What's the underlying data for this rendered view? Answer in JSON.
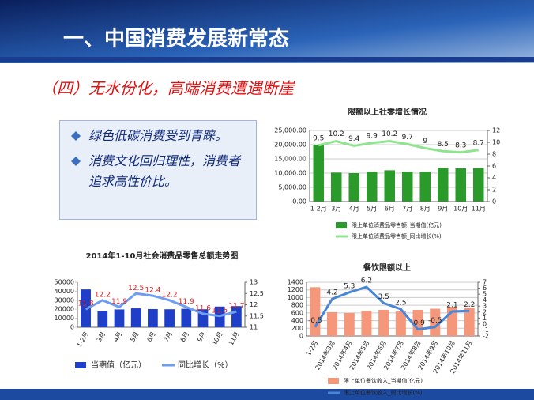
{
  "slide_title": "一、中国消费发展新常态",
  "subtitle": "（四）无水份化，高端消费遭遇断崖",
  "bullets": [
    "绿色低碳消费受到青睐。",
    "消费文化回归理性，消费者追求高性价比。"
  ],
  "chart_data": [
    {
      "type": "bar-line",
      "title": "限额以上社零增长情况",
      "categories": [
        "1-2月",
        "3月",
        "4月",
        "5月",
        "6月",
        "7月",
        "8月",
        "9月",
        "10月",
        "11月"
      ],
      "series": [
        {
          "name": "限上单位消费品零售额_当期值(亿元)",
          "type": "bar",
          "color": "#2a9a2a",
          "values": [
            20000,
            10200,
            10000,
            10500,
            11000,
            10500,
            10500,
            11800,
            11700,
            11800
          ]
        },
        {
          "name": "限上单位消费品零售额_同比增长(%)",
          "type": "line",
          "axis": "y2",
          "color": "#8fe58f",
          "values": [
            9.5,
            10.2,
            9.4,
            9.9,
            10.2,
            9.7,
            9,
            8.5,
            8.3,
            8.7
          ]
        }
      ],
      "ylim": [
        0,
        25000
      ],
      "yticks": [
        {
          "value": 0,
          "label": "0.00"
        },
        {
          "value": 5000,
          "label": "5,000.00"
        },
        {
          "value": 10000,
          "label": "10,000.00"
        },
        {
          "value": 15000,
          "label": "15,000.00"
        },
        {
          "value": 20000,
          "label": "20,000.00"
        },
        {
          "value": 25000,
          "label": "25,000.00"
        }
      ],
      "y2lim": [
        0,
        12
      ],
      "y2ticks": [
        0,
        2,
        4,
        6,
        8,
        10,
        12
      ],
      "grid": true
    },
    {
      "type": "bar-line",
      "title": "2014年1-10月社会消费品零售总额走势图",
      "categories": [
        "1-2月",
        "3月",
        "4月",
        "5月",
        "6月",
        "7月",
        "8月",
        "9月",
        "10月",
        "11月"
      ],
      "series": [
        {
          "name": "当期值（亿元）",
          "type": "bar",
          "color": "#1f3fc8",
          "values": [
            42000,
            18000,
            19800,
            21000,
            20200,
            20000,
            20500,
            20000,
            23000,
            23500
          ]
        },
        {
          "name": "同比增长（%）",
          "type": "line",
          "axis": "y2",
          "color": "#6f9ef0",
          "label_color": "#e02020",
          "values": [
            11.8,
            12.2,
            11.9,
            12.5,
            12.4,
            12.2,
            11.9,
            11.6,
            11.5,
            11.7
          ]
        }
      ],
      "ylim": [
        0,
        50000
      ],
      "yticks": [
        0,
        10000,
        20000,
        30000,
        40000,
        50000
      ],
      "y2lim": [
        11,
        13
      ],
      "y2ticks": [
        11,
        11.5,
        12,
        12.5,
        13
      ],
      "grid": false
    },
    {
      "type": "bar-line",
      "title": "餐饮限额以上",
      "categories": [
        "1-2月",
        "2014年3月",
        "2014年4月",
        "2014年5月",
        "2014年6月",
        "2014年7月",
        "2014年8月",
        "2014年9月",
        "2014年10月",
        "2014年11月"
      ],
      "series": [
        {
          "name": "限上单位餐饮收入_当期值(亿元)",
          "type": "bar",
          "color": "#f4977a",
          "values": [
            1270,
            620,
            600,
            650,
            680,
            640,
            680,
            710,
            760,
            740
          ]
        },
        {
          "name": "限上单位餐饮收入_同比增长(%)",
          "type": "line",
          "axis": "y2",
          "color": "#4a86d8",
          "values": [
            -0.5,
            4.2,
            5.3,
            6.2,
            3.5,
            2.5,
            -0.9,
            -0.5,
            2.1,
            2.2
          ]
        }
      ],
      "ylim": [
        0,
        1400
      ],
      "yticks": [
        0,
        200,
        400,
        600,
        800,
        1000,
        1200,
        1400
      ],
      "y2lim": [
        -2,
        7
      ],
      "y2ticks": [
        -2,
        -1,
        0,
        1,
        2,
        3,
        4,
        5,
        6,
        7
      ],
      "grid": true
    }
  ]
}
